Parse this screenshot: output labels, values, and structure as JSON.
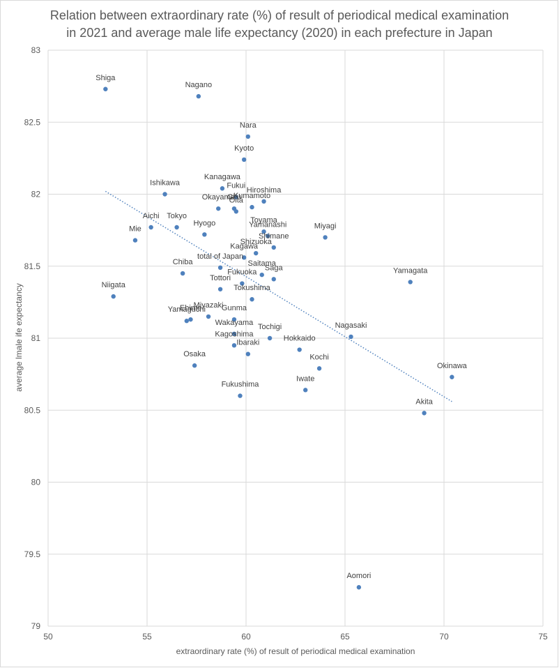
{
  "chart_data": {
    "type": "scatter",
    "title": [
      "Relation between extraordinary rate (%) of result of periodical medical examination",
      "in 2021 and average male life expectancy (2020) in each prefecture in Japan"
    ],
    "xlabel": "extraordinary rate (%) of result of periodical medical examination",
    "ylabel": "average lmale ife expectancy",
    "xlim": [
      50,
      75
    ],
    "ylim": [
      79,
      83
    ],
    "xticks": [
      50,
      55,
      60,
      65,
      70,
      75
    ],
    "yticks": [
      79,
      79.5,
      80,
      80.5,
      81,
      81.5,
      82,
      82.5,
      83
    ],
    "grid": true,
    "legend": "none",
    "colors": {
      "marker": "#4f81bd",
      "trendline": "#4f81bd",
      "grid": "#d9d9d9",
      "text": "#595959"
    },
    "trendline": {
      "style": "dotted",
      "x": [
        52.9,
        70.4
      ],
      "y": [
        82.02,
        80.56
      ]
    },
    "points": [
      {
        "label": "Shiga",
        "x": 52.9,
        "y": 82.73
      },
      {
        "label": "Nagano",
        "x": 57.6,
        "y": 82.68
      },
      {
        "label": "Nara",
        "x": 60.1,
        "y": 82.4
      },
      {
        "label": "Kyoto",
        "x": 59.9,
        "y": 82.24
      },
      {
        "label": "Kanagawa",
        "x": 58.8,
        "y": 82.04
      },
      {
        "label": "Ishikawa",
        "x": 55.9,
        "y": 82.0
      },
      {
        "label": "Fukui",
        "x": 59.5,
        "y": 81.98
      },
      {
        "label": "Hiroshima",
        "x": 60.9,
        "y": 81.95
      },
      {
        "label": "Kumamoto",
        "x": 60.3,
        "y": 81.91
      },
      {
        "label": "Okayama",
        "x": 58.6,
        "y": 81.9
      },
      {
        "label": "Gifu",
        "x": 59.4,
        "y": 81.9
      },
      {
        "label": "Oita",
        "x": 59.5,
        "y": 81.88
      },
      {
        "label": "Aichi",
        "x": 55.2,
        "y": 81.77
      },
      {
        "label": "Tokyo",
        "x": 56.5,
        "y": 81.77
      },
      {
        "label": "Toyama",
        "x": 60.9,
        "y": 81.74
      },
      {
        "label": "Hyogo",
        "x": 57.9,
        "y": 81.72
      },
      {
        "label": "Yamanashi",
        "x": 61.1,
        "y": 81.71
      },
      {
        "label": "Miyagi",
        "x": 64.0,
        "y": 81.7
      },
      {
        "label": "Mie",
        "x": 54.4,
        "y": 81.68
      },
      {
        "label": "Shimane",
        "x": 61.4,
        "y": 81.63
      },
      {
        "label": "Shizuoka",
        "x": 60.5,
        "y": 81.59
      },
      {
        "label": "Kagawa",
        "x": 59.9,
        "y": 81.56
      },
      {
        "label": "total of Japan",
        "x": 58.7,
        "y": 81.49
      },
      {
        "label": "Chiba",
        "x": 56.8,
        "y": 81.45
      },
      {
        "label": "Saitama",
        "x": 60.8,
        "y": 81.44
      },
      {
        "label": "Saga",
        "x": 61.4,
        "y": 81.41
      },
      {
        "label": "Yamagata",
        "x": 68.3,
        "y": 81.39
      },
      {
        "label": "Fukuoka",
        "x": 59.8,
        "y": 81.38
      },
      {
        "label": "Tottori",
        "x": 58.7,
        "y": 81.34
      },
      {
        "label": "Niigata",
        "x": 53.3,
        "y": 81.29
      },
      {
        "label": "Tokushima",
        "x": 60.3,
        "y": 81.27
      },
      {
        "label": "Miyazaki",
        "x": 58.1,
        "y": 81.15
      },
      {
        "label": "Gunma",
        "x": 59.4,
        "y": 81.13
      },
      {
        "label": "Ehime",
        "x": 57.2,
        "y": 81.13
      },
      {
        "label": "Yamaguchi",
        "x": 57.0,
        "y": 81.12
      },
      {
        "label": "Wakayama",
        "x": 59.4,
        "y": 81.03
      },
      {
        "label": "Nagasaki",
        "x": 65.3,
        "y": 81.01
      },
      {
        "label": "Tochigi",
        "x": 61.2,
        "y": 81.0
      },
      {
        "label": "Kagoshima",
        "x": 59.4,
        "y": 80.95
      },
      {
        "label": "Hokkaido",
        "x": 62.7,
        "y": 80.92
      },
      {
        "label": "Ibaraki",
        "x": 60.1,
        "y": 80.89
      },
      {
        "label": "Osaka",
        "x": 57.4,
        "y": 80.81
      },
      {
        "label": "Kochi",
        "x": 63.7,
        "y": 80.79
      },
      {
        "label": "Okinawa",
        "x": 70.4,
        "y": 80.73
      },
      {
        "label": "Iwate",
        "x": 63.0,
        "y": 80.64
      },
      {
        "label": "Fukushima",
        "x": 59.7,
        "y": 80.6
      },
      {
        "label": "Akita",
        "x": 69.0,
        "y": 80.48
      },
      {
        "label": "Aomori",
        "x": 65.7,
        "y": 79.27
      }
    ]
  }
}
